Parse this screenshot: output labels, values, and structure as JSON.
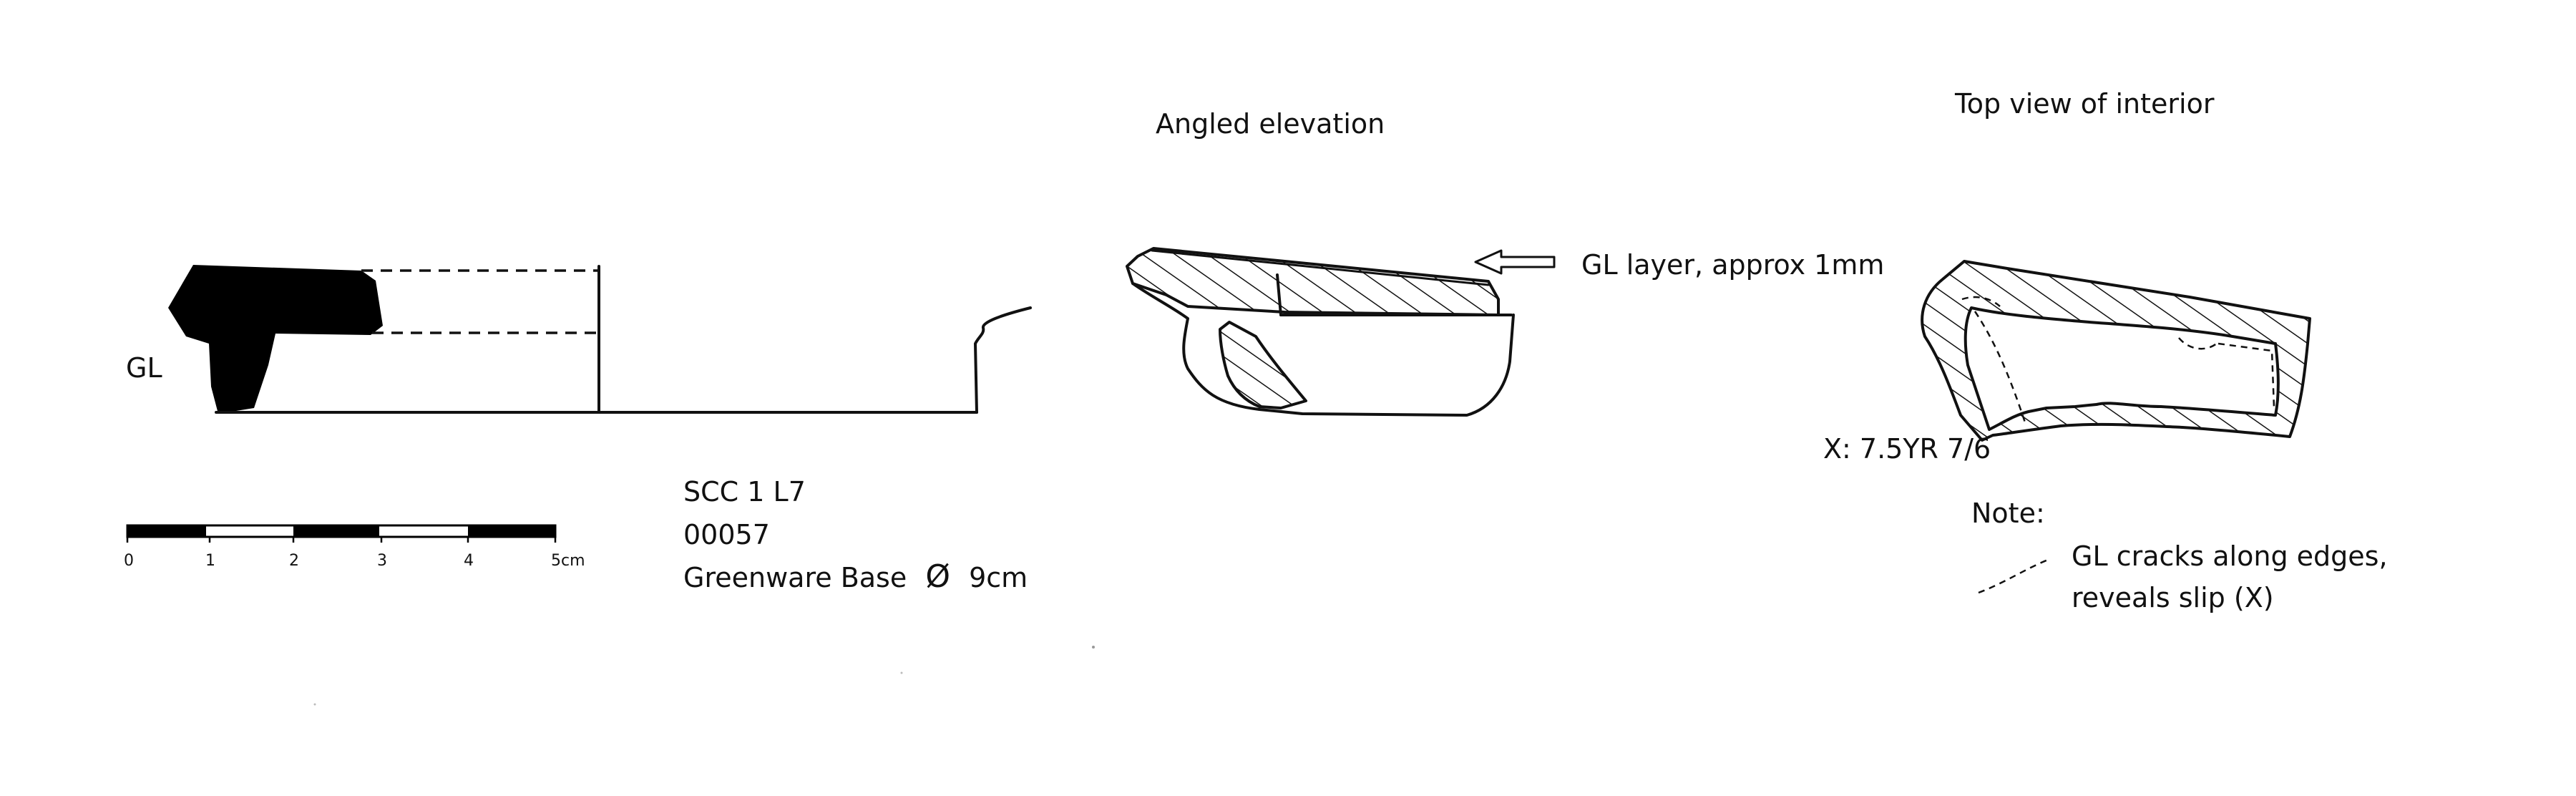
{
  "profile": {
    "glaze_marker": "GL"
  },
  "scale_bar": {
    "tick_labels": [
      "0",
      "1",
      "2",
      "3",
      "4",
      "5cm"
    ]
  },
  "catalogue": {
    "site_code": "SCC 1 L7",
    "object_number": "00057",
    "description_prefix": "Greenware Base",
    "diameter_symbol": "Ø",
    "diameter_value": "9cm"
  },
  "elevation": {
    "title": "Angled elevation",
    "arrow_label": "GL layer, approx 1mm"
  },
  "top_view": {
    "title": "Top view of interior",
    "slip_colour": "X: 7.5YR 7/6",
    "note_heading": "Note:",
    "note_line_1": "GL cracks along edges,",
    "note_line_2": "reveals slip (X)"
  },
  "colors": {
    "ink": "#111111",
    "paper": "#ffffff"
  }
}
